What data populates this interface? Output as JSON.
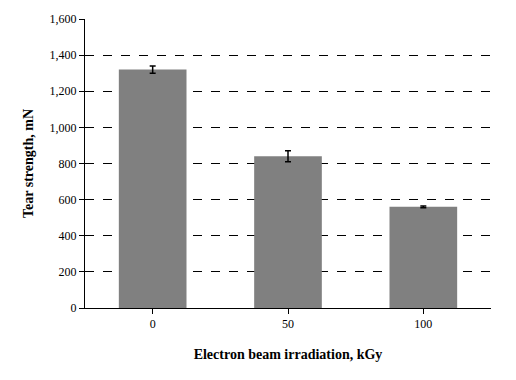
{
  "chart_data": {
    "type": "bar",
    "x_label": "Electron beam irradiation, kGy",
    "y_label": "Tear strength, mN",
    "categories": [
      "0",
      "50",
      "100"
    ],
    "values": [
      1320,
      840,
      560
    ],
    "errors": [
      20,
      30,
      5
    ],
    "color": "#808080",
    "ylim": [
      0,
      1600
    ],
    "yticks": [
      0,
      200,
      400,
      600,
      800,
      {
        "value": 1000,
        "label": "1,000"
      },
      {
        "value": 1200,
        "label": "1,200"
      },
      {
        "value": 1400,
        "label": "1,400"
      },
      {
        "value": 1600,
        "label": "1,600"
      }
    ],
    "grid": true
  }
}
